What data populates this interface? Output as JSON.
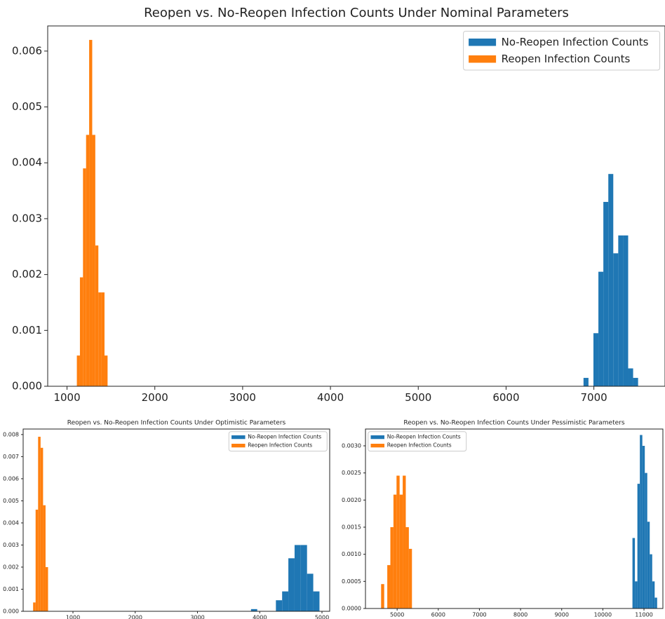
{
  "chart_data": [
    {
      "type": "histogram",
      "title": "Reopen vs. No-Reopen Infection Counts Under Nominal Parameters",
      "xlim": [
        780,
        7810
      ],
      "ylim": [
        0,
        0.00645
      ],
      "xticks": [
        1000,
        2000,
        3000,
        4000,
        5000,
        6000,
        7000
      ],
      "yticks": [
        {
          "value": 0,
          "label": "0.000"
        },
        {
          "value": 0.001,
          "label": "0.001"
        },
        {
          "value": 0.002,
          "label": "0.002"
        },
        {
          "value": 0.003,
          "label": "0.003"
        },
        {
          "value": 0.004,
          "label": "0.004"
        },
        {
          "value": 0.005,
          "label": "0.005"
        },
        {
          "value": 0.006,
          "label": "0.006"
        }
      ],
      "legend": "upper right",
      "series": [
        {
          "name": "No-Reopen Infection Counts",
          "color": "#1f77b4",
          "bins": [
            6882,
            6938.5,
            6995,
            7051.5,
            7108,
            7164.5,
            7221,
            7277.5,
            7334,
            7390.5,
            7447,
            7503.5
          ],
          "values": [
            0.00015,
            0,
            0.00095,
            0.00205,
            0.0033,
            0.0038,
            0.00238,
            0.0027,
            0.0027,
            0.00032,
            0.00015
          ]
        },
        {
          "name": "Reopen Infection Counts",
          "color": "#ff7f0e",
          "bins": [
            1112,
            1147,
            1182,
            1217,
            1252,
            1287,
            1322,
            1357,
            1392,
            1427,
            1462
          ],
          "values": [
            0.00055,
            0.00195,
            0.0039,
            0.0045,
            0.0062,
            0.0045,
            0.00252,
            0.00168,
            0.00168,
            0.00055
          ]
        }
      ]
    },
    {
      "type": "histogram",
      "title": "Reopen vs. No-Reopen Infection Counts Under Optimistic Parameters",
      "xlim": [
        200,
        5124
      ],
      "ylim": [
        0,
        0.00825
      ],
      "xticks": [
        1000,
        2000,
        3000,
        4000,
        5000
      ],
      "yticks": [
        {
          "value": 0,
          "label": "0.000"
        },
        {
          "value": 0.001,
          "label": "0.001"
        },
        {
          "value": 0.002,
          "label": "0.002"
        },
        {
          "value": 0.003,
          "label": "0.003"
        },
        {
          "value": 0.004,
          "label": "0.004"
        },
        {
          "value": 0.005,
          "label": "0.005"
        },
        {
          "value": 0.006,
          "label": "0.006"
        },
        {
          "value": 0.007,
          "label": "0.007"
        },
        {
          "value": 0.008,
          "label": "0.008"
        }
      ],
      "legend": "upper right",
      "series": [
        {
          "name": "No-Reopen Infection Counts",
          "color": "#1f77b4",
          "bins": [
            3860,
            3960,
            4060,
            4160,
            4260,
            4360,
            4460,
            4560,
            4660,
            4760,
            4860,
            4960
          ],
          "values": [
            0.0001,
            0,
            0,
            0,
            0.0005,
            0.0009,
            0.0024,
            0.003,
            0.003,
            0.0017,
            0.0009
          ]
        },
        {
          "name": "Reopen Infection Counts",
          "color": "#ff7f0e",
          "bins": [
            360,
            400,
            440,
            480,
            520,
            560,
            600
          ],
          "values": [
            0.0004,
            0.0046,
            0.0079,
            0.0074,
            0.0048,
            0.002
          ]
        }
      ]
    },
    {
      "type": "histogram",
      "title": "Reopen vs. No-Reopen Infection Counts Under Pessimistic Parameters",
      "xlim": [
        4230,
        11460
      ],
      "ylim": [
        0,
        0.00331
      ],
      "xticks": [
        5000,
        6000,
        7000,
        8000,
        9000,
        10000,
        11000
      ],
      "yticks": [
        {
          "value": 0,
          "label": "0.0000"
        },
        {
          "value": 0.0005,
          "label": "0.0005"
        },
        {
          "value": 0.001,
          "label": "0.0010"
        },
        {
          "value": 0.0015,
          "label": "0.0015"
        },
        {
          "value": 0.002,
          "label": "0.0020"
        },
        {
          "value": 0.0025,
          "label": "0.0025"
        },
        {
          "value": 0.003,
          "label": "0.0030"
        }
      ],
      "legend": "upper left",
      "series": [
        {
          "name": "No-Reopen Infection Counts",
          "color": "#1f77b4",
          "bins": [
            10720,
            10780,
            10840,
            10900,
            10960,
            11020,
            11080,
            11140,
            11200,
            11260,
            11320
          ],
          "values": [
            0.0013,
            0.0005,
            0.0023,
            0.0032,
            0.003,
            0.0025,
            0.0016,
            0.001,
            0.0005,
            0.0002
          ]
        },
        {
          "name": "Reopen Infection Counts",
          "color": "#ff7f0e",
          "bins": [
            4610,
            4685,
            4760,
            4835,
            4910,
            4985,
            5060,
            5135,
            5210,
            5285,
            5360
          ],
          "values": [
            0.00045,
            0,
            0.0008,
            0.0015,
            0.0021,
            0.00245,
            0.0021,
            0.00245,
            0.0015,
            0.0011
          ]
        }
      ]
    }
  ]
}
